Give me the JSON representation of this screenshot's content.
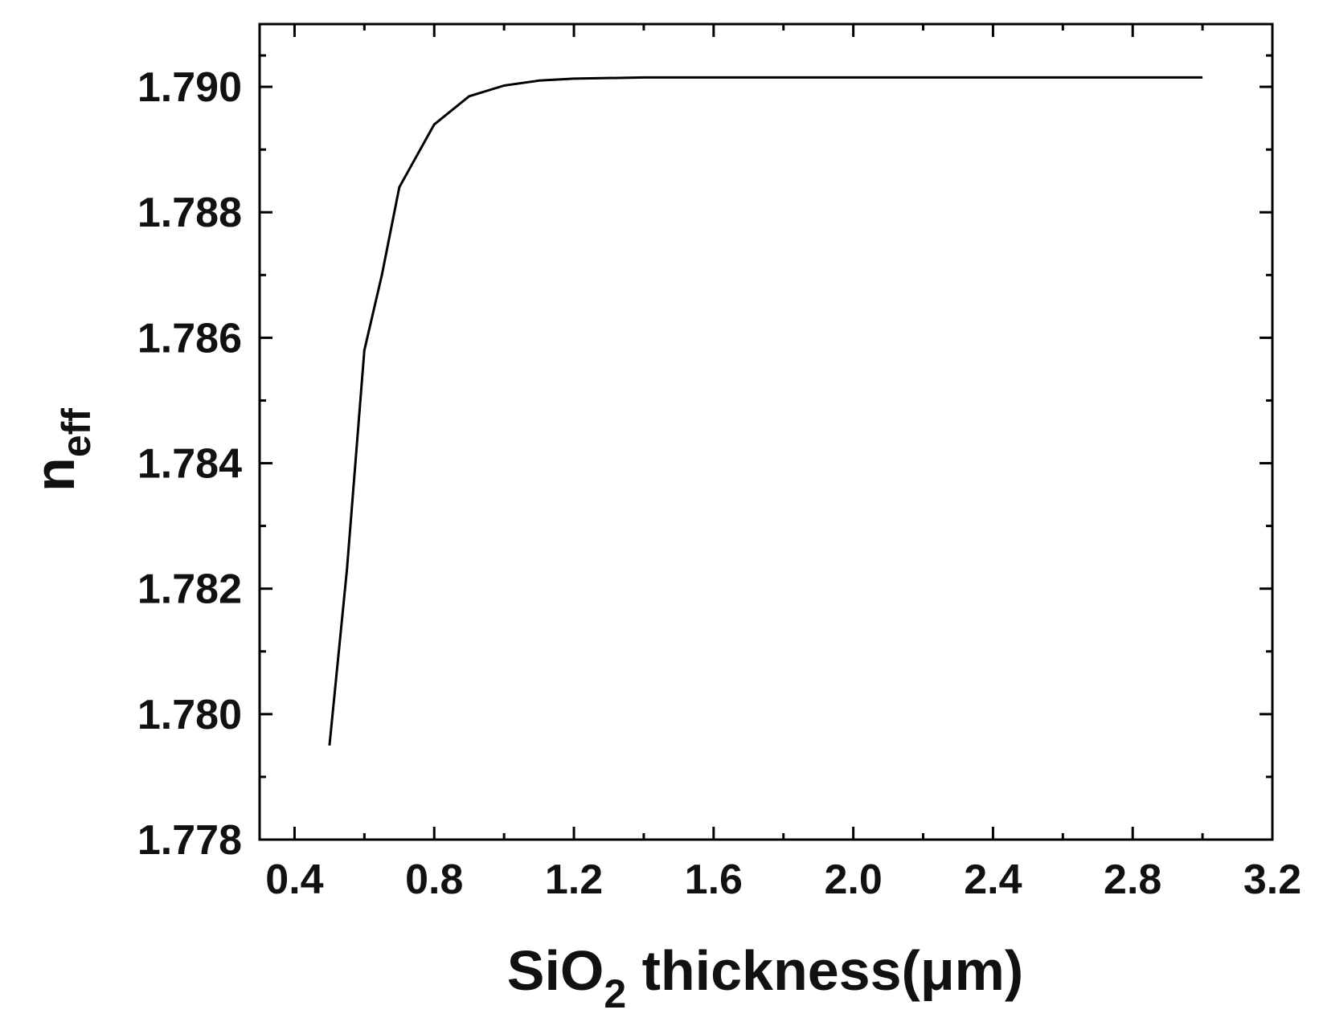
{
  "chart_data": {
    "type": "line",
    "title": "",
    "xlabel": {
      "main": "SiO",
      "sub": "2",
      "rest": " thickness(μm)"
    },
    "ylabel": {
      "main": "n",
      "sub": "eff"
    },
    "xlim": [
      0.3,
      3.2
    ],
    "ylim": [
      1.778,
      1.791
    ],
    "x_ticks": [
      0.4,
      0.8,
      1.2,
      1.6,
      2.0,
      2.4,
      2.8,
      3.2
    ],
    "x_tick_labels": [
      "0.4",
      "0.8",
      "1.2",
      "1.6",
      "2.0",
      "2.4",
      "2.8",
      "3.2"
    ],
    "y_ticks": [
      1.778,
      1.78,
      1.782,
      1.784,
      1.786,
      1.788,
      1.79
    ],
    "y_tick_labels": [
      "1.778",
      "1.780",
      "1.782",
      "1.784",
      "1.786",
      "1.788",
      "1.790"
    ],
    "grid": false,
    "legend": "none",
    "series": [
      {
        "color": "#000000",
        "x": [
          0.5,
          0.55,
          0.6,
          0.65,
          0.7,
          0.8,
          0.9,
          1.0,
          1.1,
          1.2,
          1.4,
          1.6,
          2.0,
          2.4,
          2.8,
          3.0
        ],
        "y": [
          1.7795,
          1.7823,
          1.7858,
          1.787,
          1.7884,
          1.7894,
          1.78985,
          1.79002,
          1.7901,
          1.79013,
          1.79015,
          1.79015,
          1.79015,
          1.79015,
          1.79015,
          1.79015
        ]
      }
    ]
  }
}
